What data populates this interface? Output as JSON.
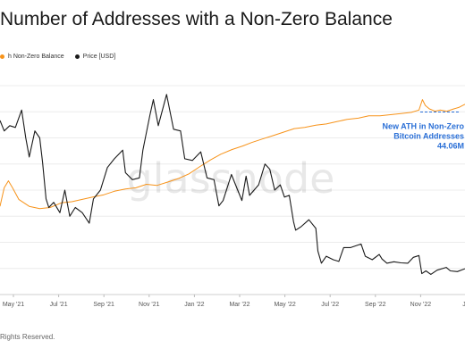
{
  "header": {
    "title": "Number of Addresses with a Non-Zero Balance"
  },
  "legend": {
    "items": [
      {
        "label": "h Non-Zero Balance",
        "color": "#f7931a"
      },
      {
        "label": "Price [USD]",
        "color": "#1a1a1a"
      }
    ]
  },
  "watermark": "glassnode",
  "footer": {
    "text": "Rights Reserved."
  },
  "annotation": {
    "lines": [
      "New ATH in Non-Zero",
      "Bitcoin Addresses",
      "44.06M"
    ],
    "color": "#2a6fd6"
  },
  "chart_data": {
    "type": "line",
    "x_ticks": [
      "May '21",
      "Jul '21",
      "Sep '21",
      "Nov '21",
      "Jan '22",
      "Mar '22",
      "May '22",
      "Jul '22",
      "Sep '22",
      "Nov '22",
      "Ja"
    ],
    "xlim": [
      "2021-03-14",
      "2023-01-10"
    ],
    "grid": true,
    "series": [
      {
        "name": "h Non-Zero Balance",
        "color": "#f7931a",
        "axis": "left",
        "ylim": [
          36.0,
          45.0
        ],
        "unit": "M",
        "points": [
          [
            "2021-03-14",
            39.8
          ],
          [
            "2021-03-20",
            40.6
          ],
          [
            "2021-03-26",
            40.9
          ],
          [
            "2021-04-01",
            40.6
          ],
          [
            "2021-04-10",
            40.1
          ],
          [
            "2021-04-25",
            39.8
          ],
          [
            "2021-05-10",
            39.7
          ],
          [
            "2021-05-25",
            39.75
          ],
          [
            "2021-06-10",
            39.95
          ],
          [
            "2021-06-25",
            40.0
          ],
          [
            "2021-07-10",
            40.1
          ],
          [
            "2021-07-25",
            40.2
          ],
          [
            "2021-08-10",
            40.3
          ],
          [
            "2021-08-25",
            40.45
          ],
          [
            "2021-09-10",
            40.55
          ],
          [
            "2021-09-25",
            40.6
          ],
          [
            "2021-10-10",
            40.75
          ],
          [
            "2021-10-25",
            40.7
          ],
          [
            "2021-11-10",
            40.85
          ],
          [
            "2021-11-25",
            41.0
          ],
          [
            "2021-12-10",
            41.2
          ],
          [
            "2021-12-25",
            41.5
          ],
          [
            "2022-01-10",
            41.8
          ],
          [
            "2022-01-25",
            42.05
          ],
          [
            "2022-02-10",
            42.25
          ],
          [
            "2022-02-25",
            42.4
          ],
          [
            "2022-03-10",
            42.55
          ],
          [
            "2022-03-25",
            42.7
          ],
          [
            "2022-04-10",
            42.85
          ],
          [
            "2022-04-25",
            43.0
          ],
          [
            "2022-05-10",
            43.15
          ],
          [
            "2022-05-25",
            43.2
          ],
          [
            "2022-06-10",
            43.3
          ],
          [
            "2022-06-25",
            43.35
          ],
          [
            "2022-07-10",
            43.45
          ],
          [
            "2022-07-25",
            43.55
          ],
          [
            "2022-08-10",
            43.6
          ],
          [
            "2022-08-25",
            43.7
          ],
          [
            "2022-09-10",
            43.7
          ],
          [
            "2022-09-25",
            43.75
          ],
          [
            "2022-10-10",
            43.8
          ],
          [
            "2022-10-25",
            43.85
          ],
          [
            "2022-11-05",
            43.95
          ],
          [
            "2022-11-10",
            44.4
          ],
          [
            "2022-11-14",
            44.15
          ],
          [
            "2022-11-20",
            44.0
          ],
          [
            "2022-11-28",
            43.9
          ],
          [
            "2022-12-05",
            43.95
          ],
          [
            "2022-12-15",
            43.9
          ],
          [
            "2022-12-25",
            44.0
          ],
          [
            "2023-01-01",
            44.06
          ],
          [
            "2023-01-10",
            44.2
          ]
        ]
      },
      {
        "name": "Price [USD]",
        "color": "#1a1a1a",
        "axis": "right",
        "ylim": [
          10000,
          70000
        ],
        "unit": "USD",
        "points": [
          [
            "2021-03-14",
            60000
          ],
          [
            "2021-03-20",
            57000
          ],
          [
            "2021-03-28",
            58500
          ],
          [
            "2021-04-05",
            58000
          ],
          [
            "2021-04-14",
            63000
          ],
          [
            "2021-04-20",
            55000
          ],
          [
            "2021-04-25",
            49500
          ],
          [
            "2021-05-03",
            57000
          ],
          [
            "2021-05-10",
            55000
          ],
          [
            "2021-05-14",
            48000
          ],
          [
            "2021-05-19",
            37500
          ],
          [
            "2021-05-23",
            35000
          ],
          [
            "2021-05-30",
            36500
          ],
          [
            "2021-06-08",
            33500
          ],
          [
            "2021-06-15",
            40000
          ],
          [
            "2021-06-22",
            32500
          ],
          [
            "2021-06-30",
            35000
          ],
          [
            "2021-07-10",
            33500
          ],
          [
            "2021-07-20",
            30500
          ],
          [
            "2021-07-26",
            37500
          ],
          [
            "2021-08-05",
            40000
          ],
          [
            "2021-08-15",
            46500
          ],
          [
            "2021-08-25",
            49000
          ],
          [
            "2021-09-06",
            51500
          ],
          [
            "2021-09-10",
            45000
          ],
          [
            "2021-09-20",
            43000
          ],
          [
            "2021-09-30",
            43500
          ],
          [
            "2021-10-05",
            51500
          ],
          [
            "2021-10-15",
            61500
          ],
          [
            "2021-10-20",
            66000
          ],
          [
            "2021-10-27",
            58500
          ],
          [
            "2021-11-08",
            67500
          ],
          [
            "2021-11-18",
            57500
          ],
          [
            "2021-11-28",
            57000
          ],
          [
            "2021-12-04",
            49000
          ],
          [
            "2021-12-15",
            48500
          ],
          [
            "2021-12-27",
            51000
          ],
          [
            "2022-01-05",
            43500
          ],
          [
            "2022-01-15",
            43000
          ],
          [
            "2022-01-22",
            35500
          ],
          [
            "2022-01-28",
            37000
          ],
          [
            "2022-02-09",
            44500
          ],
          [
            "2022-02-18",
            40000
          ],
          [
            "2022-02-24",
            37000
          ],
          [
            "2022-03-02",
            44000
          ],
          [
            "2022-03-07",
            38500
          ],
          [
            "2022-03-20",
            41500
          ],
          [
            "2022-03-29",
            47500
          ],
          [
            "2022-04-05",
            46000
          ],
          [
            "2022-04-12",
            40000
          ],
          [
            "2022-04-20",
            41500
          ],
          [
            "2022-04-26",
            38000
          ],
          [
            "2022-05-03",
            38500
          ],
          [
            "2022-05-09",
            31000
          ],
          [
            "2022-05-12",
            28500
          ],
          [
            "2022-05-20",
            29500
          ],
          [
            "2022-05-31",
            31500
          ],
          [
            "2022-06-10",
            29000
          ],
          [
            "2022-06-13",
            22500
          ],
          [
            "2022-06-18",
            19000
          ],
          [
            "2022-06-25",
            21000
          ],
          [
            "2022-07-05",
            20000
          ],
          [
            "2022-07-13",
            19500
          ],
          [
            "2022-07-20",
            23500
          ],
          [
            "2022-07-30",
            23500
          ],
          [
            "2022-08-14",
            24500
          ],
          [
            "2022-08-20",
            21000
          ],
          [
            "2022-08-30",
            20000
          ],
          [
            "2022-09-09",
            21500
          ],
          [
            "2022-09-13",
            20200
          ],
          [
            "2022-09-20",
            19000
          ],
          [
            "2022-09-30",
            19400
          ],
          [
            "2022-10-10",
            19100
          ],
          [
            "2022-10-20",
            19000
          ],
          [
            "2022-10-28",
            20700
          ],
          [
            "2022-11-05",
            21200
          ],
          [
            "2022-11-09",
            16000
          ],
          [
            "2022-11-15",
            16800
          ],
          [
            "2022-11-22",
            15800
          ],
          [
            "2022-12-01",
            17000
          ],
          [
            "2022-12-14",
            17800
          ],
          [
            "2022-12-20",
            16800
          ],
          [
            "2022-12-30",
            16600
          ],
          [
            "2023-01-10",
            17400
          ]
        ]
      }
    ]
  }
}
